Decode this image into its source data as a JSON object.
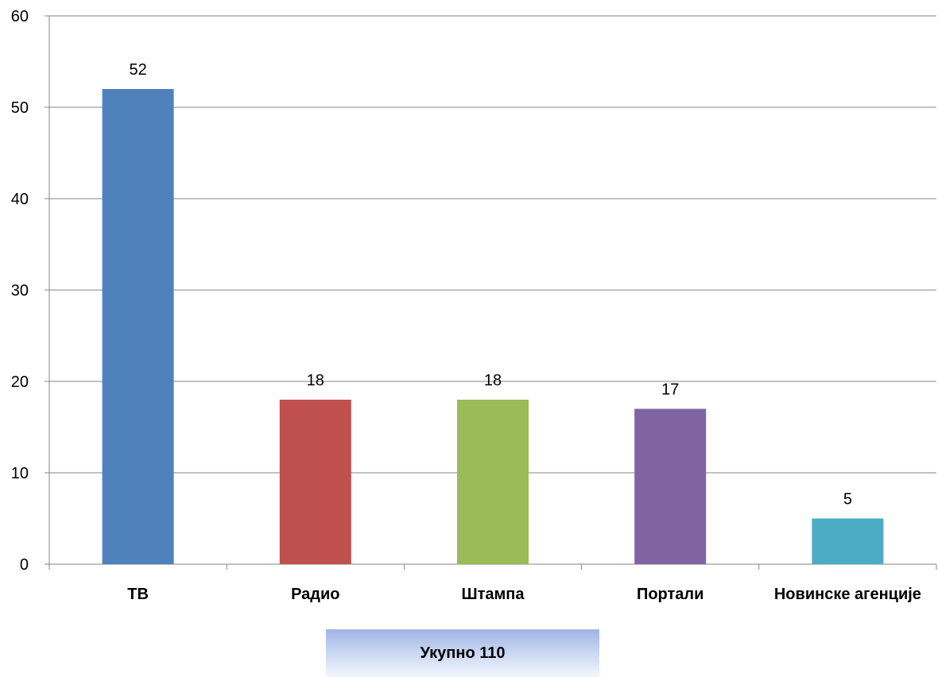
{
  "chart_data": {
    "type": "bar",
    "categories": [
      "ТВ",
      "Радио",
      "Штампа",
      "Портали",
      "Новинске агенције"
    ],
    "values": [
      52,
      18,
      18,
      17,
      5
    ],
    "colors": [
      "#4f81bd",
      "#c0504d",
      "#9bbb59",
      "#8064a2",
      "#4bacc6"
    ],
    "ylim": [
      0,
      60
    ],
    "yticks": [
      0,
      10,
      20,
      30,
      40,
      50,
      60
    ],
    "grid": true,
    "title": "",
    "xlabel": "",
    "ylabel": ""
  },
  "total": {
    "label": "Укупно 110"
  }
}
